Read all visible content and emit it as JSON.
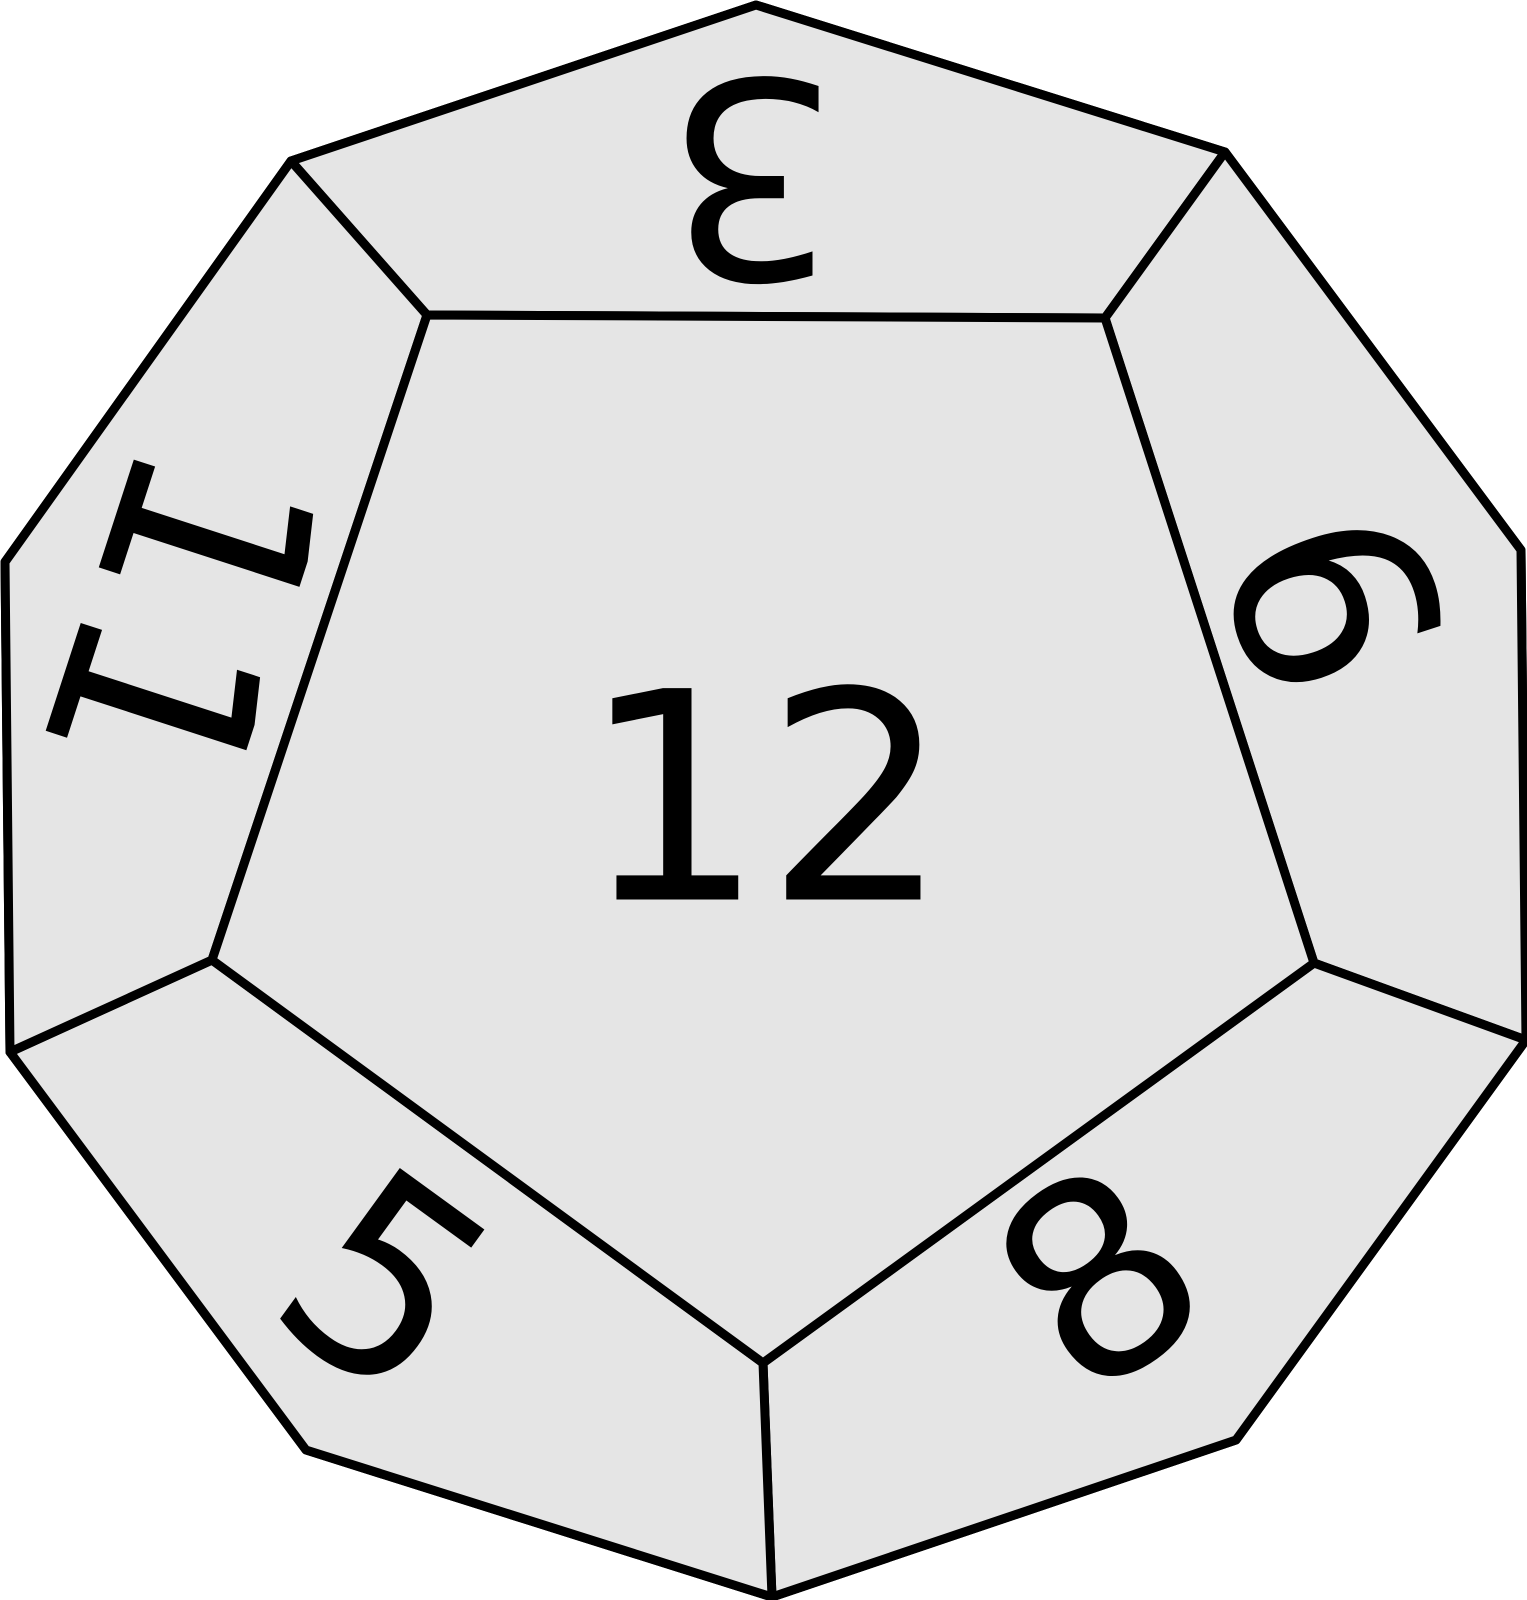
{
  "die": {
    "type": "dodecahedron (d12)",
    "colors": {
      "face_fill": "#e5e5e5",
      "edge_stroke": "#000000",
      "numeral": "#000000"
    },
    "faces": {
      "center": "12",
      "top": "3",
      "upper_left": "11",
      "upper_right": "9",
      "lower_left": "5",
      "lower_right": "8"
    }
  }
}
